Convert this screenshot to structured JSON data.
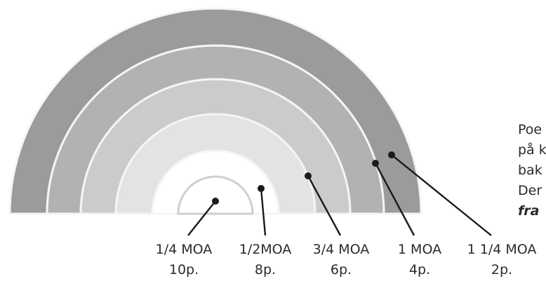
{
  "rings": [
    {
      "moa": "1/4 MOA",
      "points": "10p.",
      "color": "#ffffff"
    },
    {
      "moa": "1/2MOA",
      "points": "8p.",
      "color": "#e3e3e3"
    },
    {
      "moa": "3/4 MOA",
      "points": "6p.",
      "color": "#cbcbcb"
    },
    {
      "moa": "1 MOA",
      "points": "4p.",
      "color": "#b2b2b2"
    },
    {
      "moa": "1 1/4 MOA",
      "points": "2p.",
      "color": "#9b9b9b"
    }
  ],
  "ring_outline_color": "#f5f5f5",
  "side_text": {
    "lines": [
      "Poe",
      "på k",
      "bak",
      "Der"
    ],
    "emphasis": "fra"
  }
}
